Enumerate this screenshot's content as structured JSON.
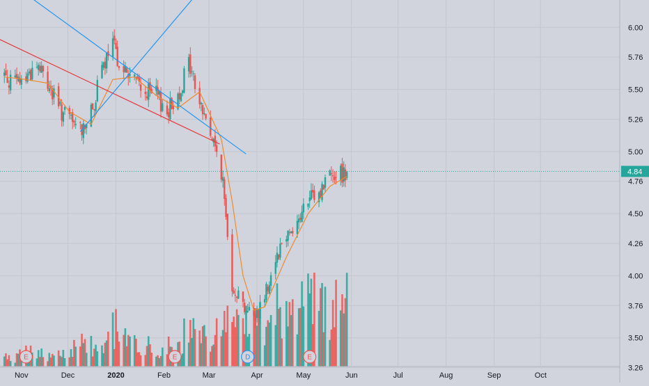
{
  "chart_data": {
    "type": "candlestick",
    "title": "",
    "xlabel": "",
    "ylabel": "",
    "ylim": [
      3.14,
      6.22
    ],
    "y_ticks": [
      "6.00",
      "5.76",
      "5.50",
      "5.26",
      "5.00",
      "4.76",
      "4.50",
      "4.26",
      "4.00",
      "3.76",
      "3.50",
      "3.26"
    ],
    "x_ticks": [
      "Nov",
      "Dec",
      "2020",
      "Feb",
      "Mar",
      "Apr",
      "May",
      "Jun",
      "Jul",
      "Aug",
      "Sep",
      "Oct"
    ],
    "last_price": "4.84",
    "last_price_value": 4.84,
    "moving_average_color": "#f0892b",
    "colors": {
      "up": "#26a69a",
      "down": "#ef5350",
      "trendline_red": "#e8373b",
      "trendline_blue": "#2196f3",
      "background": "#d1d4dc"
    },
    "event_markers": [
      {
        "label": "E",
        "date": "2019-11-04",
        "kind": "earnings"
      },
      {
        "label": "E",
        "date": "2020-02-08",
        "kind": "earnings"
      },
      {
        "label": "D",
        "date": "2020-03-26",
        "kind": "dividend"
      },
      {
        "label": "E",
        "date": "2020-05-05",
        "kind": "earnings"
      }
    ],
    "price_anchors": [
      [
        "2019-10-21",
        5.62,
        0.2
      ],
      [
        "2019-10-28",
        5.55,
        0.2
      ],
      [
        "2019-11-04",
        5.6,
        0.4
      ],
      [
        "2019-11-11",
        5.7,
        0.3
      ],
      [
        "2019-11-18",
        5.55,
        0.3
      ],
      [
        "2019-11-25",
        5.35,
        0.3
      ],
      [
        "2019-12-02",
        5.25,
        0.4
      ],
      [
        "2019-12-09",
        5.18,
        0.6
      ],
      [
        "2019-12-16",
        5.3,
        0.6
      ],
      [
        "2019-12-23",
        5.65,
        0.4
      ],
      [
        "2019-12-30",
        5.85,
        0.9
      ],
      [
        "2020-01-06",
        5.65,
        0.9
      ],
      [
        "2020-01-13",
        5.58,
        0.5
      ],
      [
        "2020-01-20",
        5.48,
        0.5
      ],
      [
        "2020-01-27",
        5.45,
        0.4
      ],
      [
        "2020-02-03",
        5.32,
        0.5
      ],
      [
        "2020-02-10",
        5.45,
        0.5
      ],
      [
        "2020-02-17",
        5.72,
        0.9
      ],
      [
        "2020-02-24",
        5.4,
        0.6
      ],
      [
        "2020-03-02",
        5.15,
        0.8
      ],
      [
        "2020-03-09",
        4.85,
        1.0
      ],
      [
        "2020-03-16",
        3.95,
        1.2
      ],
      [
        "2020-03-23",
        3.78,
        1.3
      ],
      [
        "2020-03-30",
        3.65,
        1.0
      ],
      [
        "2020-04-06",
        3.85,
        1.2
      ],
      [
        "2020-04-13",
        4.15,
        1.5
      ],
      [
        "2020-04-20",
        4.35,
        1.3
      ],
      [
        "2020-04-27",
        4.42,
        1.3
      ],
      [
        "2020-05-04",
        4.6,
        1.6
      ],
      [
        "2020-05-11",
        4.65,
        1.4
      ],
      [
        "2020-05-18",
        4.85,
        1.3
      ],
      [
        "2020-05-25",
        4.82,
        1.6
      ],
      [
        "2020-05-29",
        4.84,
        2.0
      ]
    ],
    "moving_average_anchors": [
      [
        "2019-10-21",
        5.6
      ],
      [
        "2019-11-04",
        5.58
      ],
      [
        "2019-11-18",
        5.55
      ],
      [
        "2019-12-02",
        5.32
      ],
      [
        "2019-12-16",
        5.22
      ],
      [
        "2019-12-30",
        5.58
      ],
      [
        "2020-01-13",
        5.6
      ],
      [
        "2020-01-27",
        5.45
      ],
      [
        "2020-02-10",
        5.35
      ],
      [
        "2020-02-24",
        5.48
      ],
      [
        "2020-03-09",
        5.1
      ],
      [
        "2020-03-16",
        4.6
      ],
      [
        "2020-03-23",
        4.0
      ],
      [
        "2020-03-30",
        3.72
      ],
      [
        "2020-04-06",
        3.75
      ],
      [
        "2020-04-20",
        4.15
      ],
      [
        "2020-05-04",
        4.5
      ],
      [
        "2020-05-18",
        4.72
      ],
      [
        "2020-05-29",
        4.8
      ]
    ],
    "trendlines": [
      {
        "color": "red",
        "from": [
          "2019-10-15",
          5.92
        ],
        "to": [
          "2020-03-08",
          5.06
        ]
      },
      {
        "color": "blue",
        "from": [
          "2019-10-27",
          6.34
        ],
        "to": [
          "2020-03-25",
          4.98
        ]
      },
      {
        "color": "blue",
        "from": [
          "2019-12-09",
          5.16
        ],
        "to": [
          "2020-02-27",
          6.34
        ]
      }
    ]
  }
}
